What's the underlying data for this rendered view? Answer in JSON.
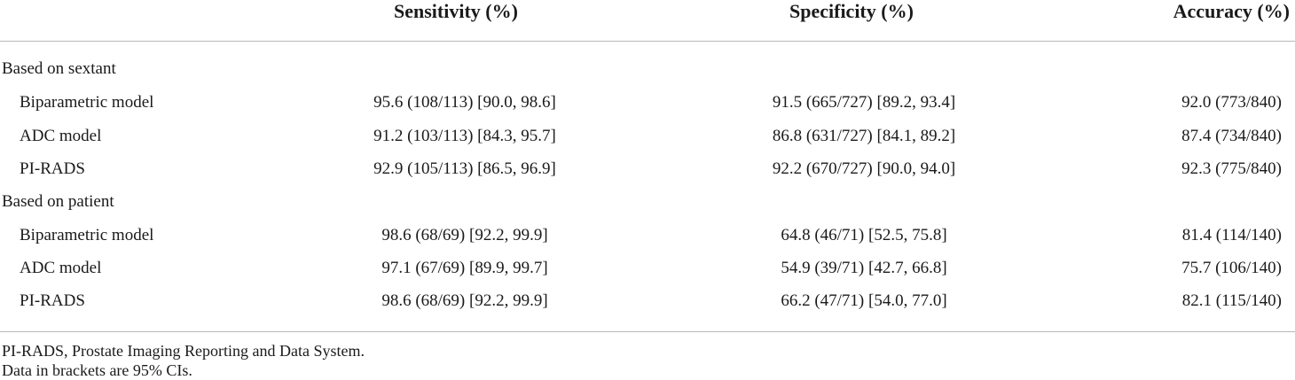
{
  "table": {
    "headers": {
      "sensitivity": "Sensitivity (%)",
      "specificity": "Specificity (%)",
      "accuracy": "Accuracy (%)"
    },
    "sections": [
      {
        "label": "Based on sextant",
        "rows": [
          {
            "model": "Biparametric model",
            "sensitivity": "95.6 (108/113) [90.0, 98.6]",
            "specificity": "91.5 (665/727) [89.2, 93.4]",
            "accuracy": "92.0 (773/840)"
          },
          {
            "model": "ADC model",
            "sensitivity": "91.2 (103/113) [84.3, 95.7]",
            "specificity": "86.8 (631/727) [84.1, 89.2]",
            "accuracy": "87.4 (734/840)"
          },
          {
            "model": "PI-RADS",
            "sensitivity": "92.9 (105/113) [86.5, 96.9]",
            "specificity": "92.2 (670/727) [90.0, 94.0]",
            "accuracy": "92.3 (775/840)"
          }
        ]
      },
      {
        "label": "Based on patient",
        "rows": [
          {
            "model": "Biparametric model",
            "sensitivity": "98.6 (68/69) [92.2, 99.9]",
            "specificity": "64.8 (46/71) [52.5, 75.8]",
            "accuracy": "81.4 (114/140)"
          },
          {
            "model": "ADC model",
            "sensitivity": "97.1 (67/69) [89.9, 99.7]",
            "specificity": "54.9 (39/71) [42.7, 66.8]",
            "accuracy": "75.7 (106/140)"
          },
          {
            "model": "PI-RADS",
            "sensitivity": "98.6 (68/69) [92.2, 99.9]",
            "specificity": "66.2 (47/71) [54.0, 77.0]",
            "accuracy": "82.1 (115/140)"
          }
        ]
      }
    ],
    "footnotes": [
      "PI-RADS, Prostate Imaging Reporting and Data System.",
      "Data in brackets are 95% CIs."
    ]
  }
}
